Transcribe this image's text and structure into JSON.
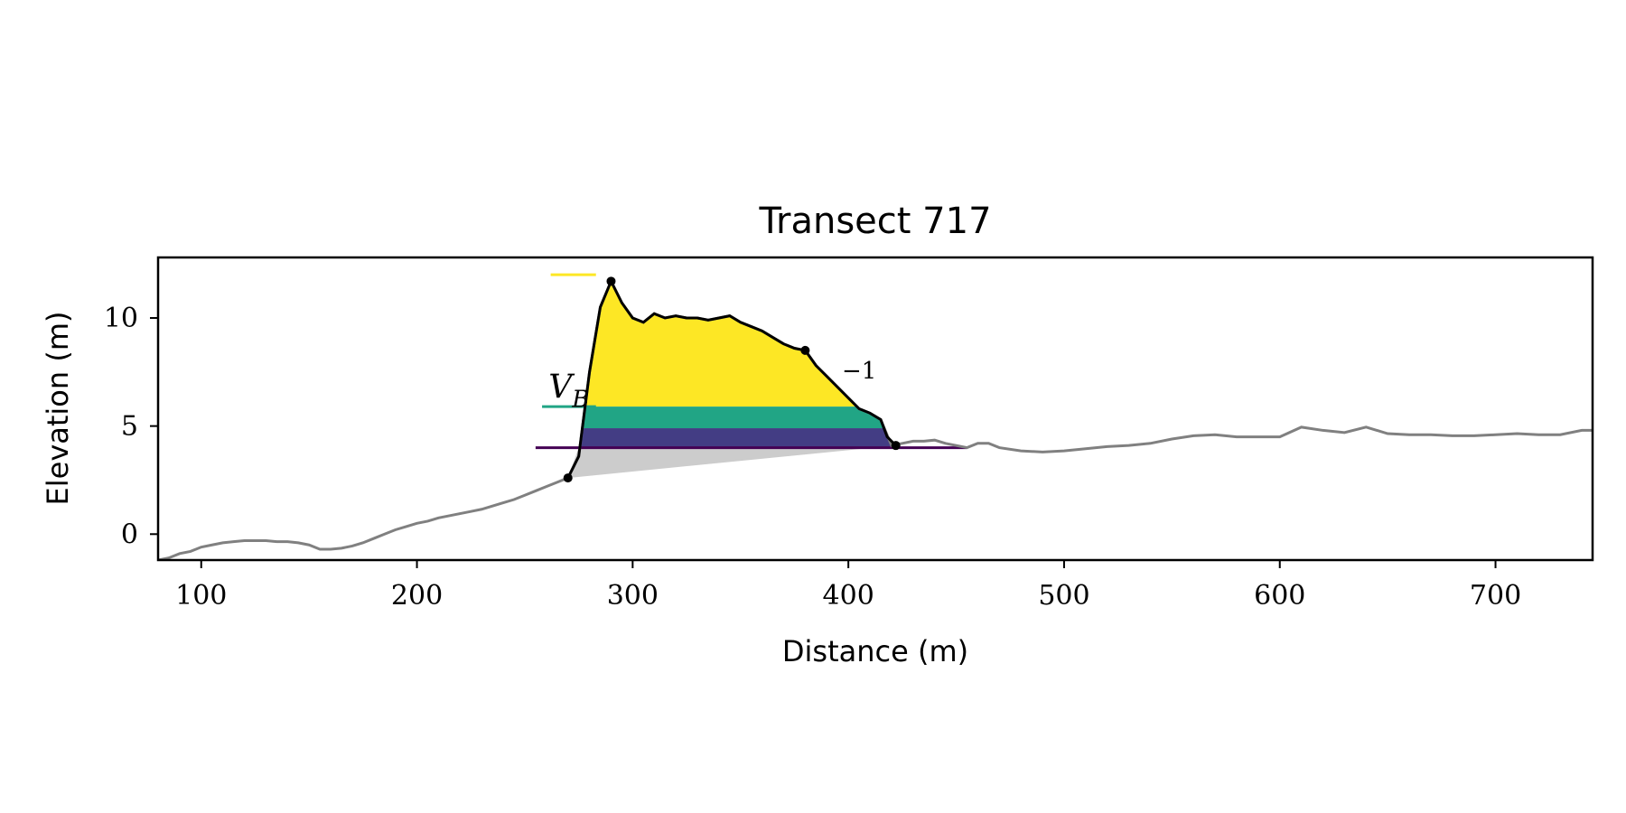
{
  "chart_data": {
    "type": "line",
    "title": "Transect 717",
    "xlabel": "Distance (m)",
    "ylabel": "Elevation (m)",
    "xlim": [
      80,
      745
    ],
    "ylim": [
      -1.2,
      12.8
    ],
    "xticks": [
      100,
      200,
      300,
      400,
      500,
      600,
      700
    ],
    "yticks": [
      0,
      5,
      10
    ],
    "grid": false,
    "colors": {
      "profile": "#808080",
      "dune": "#000000",
      "fill_base": "#cccccc",
      "band_yellow": "#fde725",
      "band_teal": "#21a585",
      "band_indigo": "#433d84",
      "band_dark": "#440154"
    },
    "profile": {
      "x": [
        80,
        85,
        90,
        95,
        100,
        105,
        110,
        115,
        120,
        125,
        130,
        135,
        140,
        145,
        150,
        155,
        160,
        165,
        170,
        175,
        180,
        185,
        190,
        195,
        200,
        205,
        210,
        215,
        220,
        225,
        230,
        235,
        240,
        245,
        250,
        255,
        260,
        265,
        270,
        275,
        280,
        285,
        290,
        295,
        300,
        305,
        310,
        315,
        320,
        325,
        330,
        335,
        340,
        345,
        350,
        355,
        360,
        365,
        370,
        375,
        380,
        385,
        390,
        395,
        400,
        405,
        410,
        415,
        420,
        425,
        430,
        435,
        440,
        445,
        450,
        455,
        460,
        465,
        470,
        480,
        490,
        500,
        510,
        520,
        530,
        540,
        550,
        560,
        570,
        580,
        590,
        600,
        610,
        620,
        630,
        640,
        650,
        660,
        670,
        680,
        690,
        700,
        710,
        720,
        730,
        740,
        745
      ],
      "y": [
        -1.2,
        -1.1,
        -0.9,
        -0.8,
        -0.6,
        -0.5,
        -0.4,
        -0.35,
        -0.3,
        -0.3,
        -0.3,
        -0.35,
        -0.35,
        -0.4,
        -0.5,
        -0.7,
        -0.7,
        -0.65,
        -0.55,
        -0.4,
        -0.2,
        0.0,
        0.2,
        0.35,
        0.5,
        0.6,
        0.75,
        0.85,
        0.95,
        1.05,
        1.15,
        1.3,
        1.45,
        1.6,
        1.8,
        2.0,
        2.2,
        2.4,
        2.6,
        3.6,
        7.5,
        10.5,
        11.7,
        10.7,
        10.0,
        9.8,
        10.2,
        10.0,
        10.1,
        10.0,
        10.0,
        9.9,
        10.0,
        10.1,
        9.8,
        9.6,
        9.4,
        9.1,
        8.8,
        8.6,
        8.5,
        7.8,
        7.3,
        6.8,
        6.3,
        5.8,
        5.6,
        5.3,
        4.1,
        4.2,
        4.3,
        4.3,
        4.35,
        4.2,
        4.1,
        4.0,
        4.2,
        4.2,
        4.0,
        3.85,
        3.8,
        3.85,
        3.95,
        4.05,
        4.1,
        4.2,
        4.4,
        4.55,
        4.6,
        4.5,
        4.5,
        4.5,
        4.95,
        4.8,
        4.7,
        4.95,
        4.65,
        4.6,
        4.6,
        4.55,
        4.55,
        4.6,
        4.65,
        4.6,
        4.6,
        4.8,
        4.8
      ]
    },
    "dune": {
      "x": [
        270,
        275,
        280,
        285,
        290,
        295,
        300,
        305,
        310,
        315,
        320,
        325,
        330,
        335,
        340,
        345,
        350,
        355,
        360,
        365,
        370,
        375,
        380,
        385,
        390,
        395,
        400,
        405,
        410,
        415,
        418,
        422
      ],
      "y": [
        2.6,
        3.6,
        7.5,
        10.5,
        11.7,
        10.7,
        10.0,
        9.8,
        10.2,
        10.0,
        10.1,
        10.0,
        10.0,
        9.9,
        10.0,
        10.1,
        9.8,
        9.6,
        9.4,
        9.1,
        8.8,
        8.6,
        8.5,
        7.8,
        7.3,
        6.8,
        6.3,
        5.8,
        5.6,
        5.3,
        4.5,
        4.1
      ]
    },
    "points": [
      {
        "name": "toe",
        "x": 270,
        "y": 2.6
      },
      {
        "name": "crest",
        "x": 290,
        "y": 11.7
      },
      {
        "name": "mid",
        "x": 380,
        "y": 8.5
      },
      {
        "name": "heel",
        "x": 422,
        "y": 4.1
      }
    ],
    "base_polygon": {
      "x": [
        270,
        422
      ],
      "y": [
        2.6,
        4.1
      ]
    },
    "bands": [
      {
        "color": "yellow",
        "from": 5.9,
        "to": 12.0,
        "line_x0": 262
      },
      {
        "color": "teal",
        "from": 4.9,
        "to": 5.9,
        "line_x0": 258
      },
      {
        "color": "indigo",
        "from": 4.0,
        "to": 4.9,
        "line_x0": null
      },
      {
        "color": "dark",
        "from": 4.0,
        "to": 4.0,
        "line_x0": 255,
        "line_x1": 455
      }
    ],
    "annotations": {
      "vb_label": "V",
      "vb_subscript": "B",
      "vb_x": 261,
      "vb_y": 6.3,
      "superscript_label": "−1",
      "superscript_x": 397,
      "superscript_y": 7.2
    }
  }
}
